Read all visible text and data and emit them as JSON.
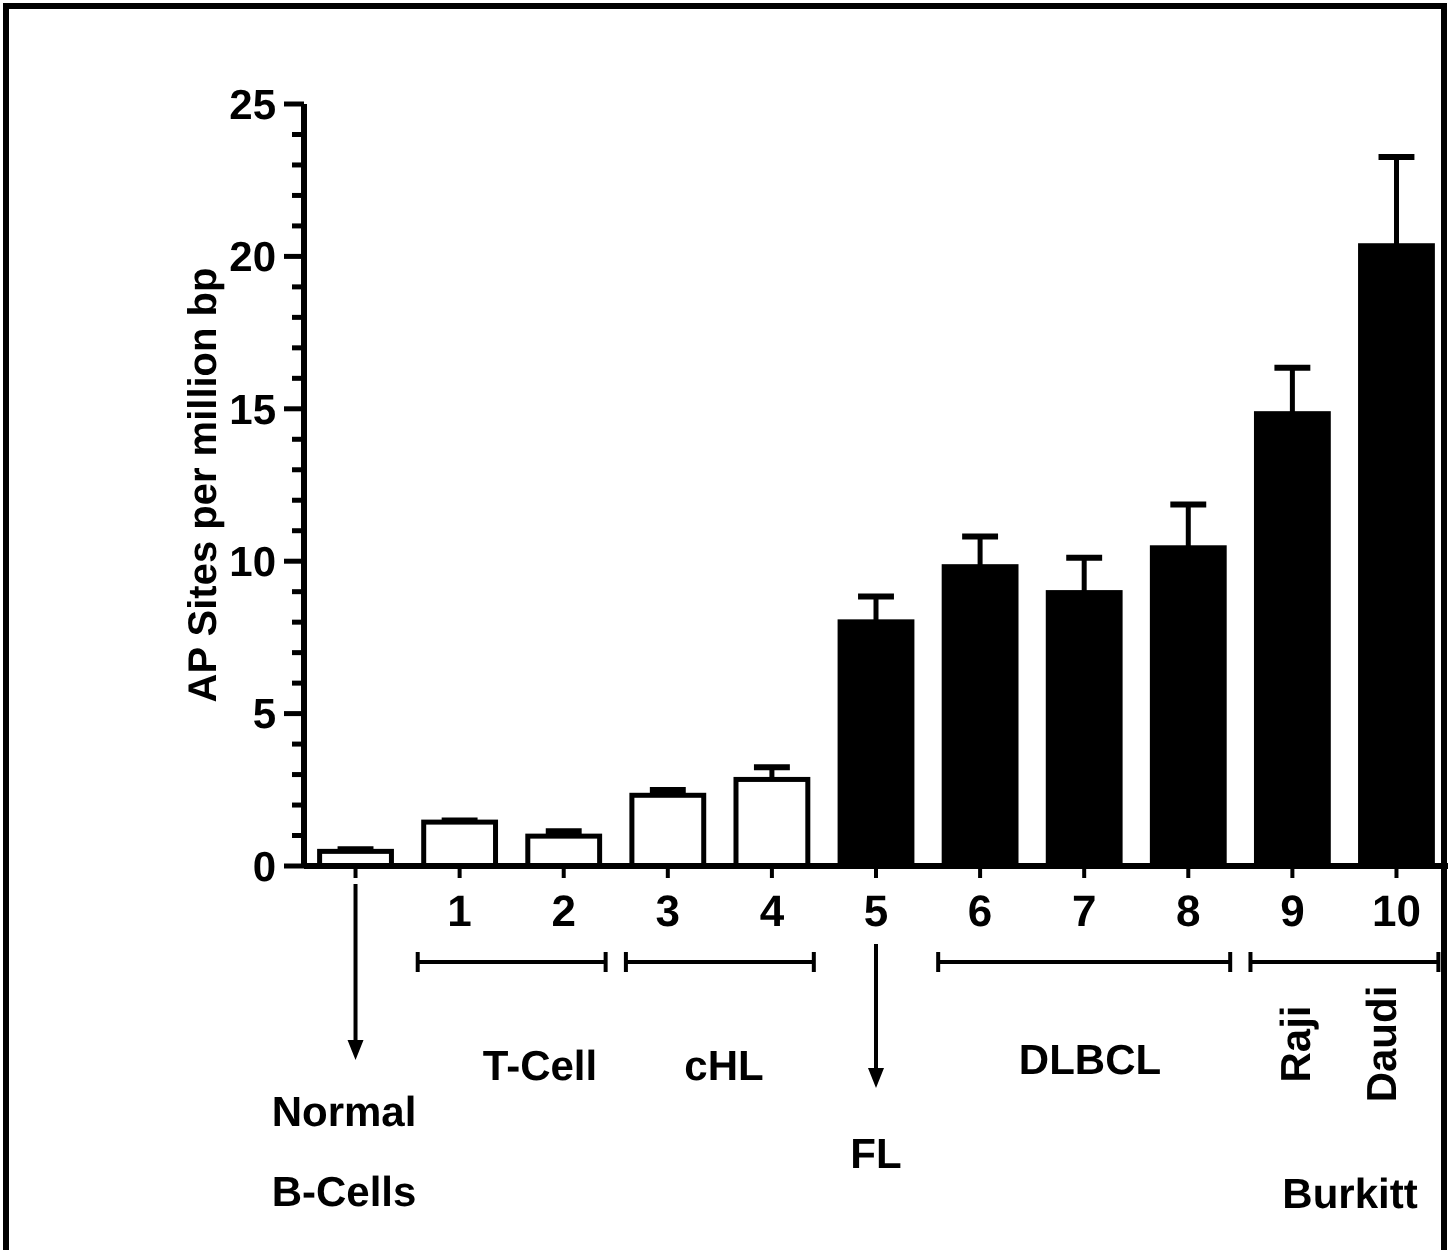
{
  "chart_data": {
    "type": "bar",
    "ylabel": "AP Sites per million bp",
    "categories": [
      null,
      "1",
      "2",
      "3",
      "4",
      "5",
      "6",
      "7",
      "8",
      "9",
      "10"
    ],
    "values": [
      0.48,
      1.44,
      0.98,
      2.32,
      2.84,
      8.01,
      9.82,
      8.97,
      10.44,
      14.84,
      20.35
    ],
    "colors": [
      "#ffffff",
      "#ffffff",
      "#ffffff",
      "#ffffff",
      "#ffffff",
      "#000000",
      "#000000",
      "#000000",
      "#000000",
      "#000000",
      "#000000"
    ],
    "errors": [
      [
        0.48,
        0.55
      ],
      [
        1.44,
        1.49
      ],
      [
        0.98,
        1.14
      ],
      [
        2.32,
        2.49
      ],
      [
        2.84,
        3.24
      ],
      [
        8.01,
        8.84
      ],
      [
        9.82,
        10.81
      ],
      [
        8.97,
        10.11
      ],
      [
        10.44,
        11.86
      ],
      [
        14.84,
        16.35
      ],
      [
        20.35,
        23.26
      ]
    ],
    "ylim": [
      0,
      25
    ],
    "yticks": [
      0,
      {
        "value": 1,
        "label": null
      },
      {
        "value": 2,
        "label": null
      },
      {
        "value": 3,
        "label": null
      },
      {
        "value": 4,
        "label": null
      },
      5,
      {
        "value": 6,
        "label": null
      },
      {
        "value": 7,
        "label": null
      },
      {
        "value": 8,
        "label": null
      },
      {
        "value": 9,
        "label": null
      },
      10,
      {
        "value": 11,
        "label": null
      },
      {
        "value": 12,
        "label": null
      },
      {
        "value": 13,
        "label": null
      },
      {
        "value": 14,
        "label": null
      },
      15,
      {
        "value": 16,
        "label": null
      },
      {
        "value": 17,
        "label": null
      },
      {
        "value": 18,
        "label": null
      },
      {
        "value": 19,
        "label": null
      },
      20,
      {
        "value": 21,
        "label": null
      },
      {
        "value": 22,
        "label": null
      },
      {
        "value": 23,
        "label": null
      },
      {
        "value": 24,
        "label": null
      },
      25
    ],
    "grid": false,
    "annotations": [
      "Normal B-Cells",
      "T-Cell",
      "cHL",
      "FL",
      "DLBCL",
      "Raji",
      "Daudi",
      "Burkitt"
    ]
  }
}
